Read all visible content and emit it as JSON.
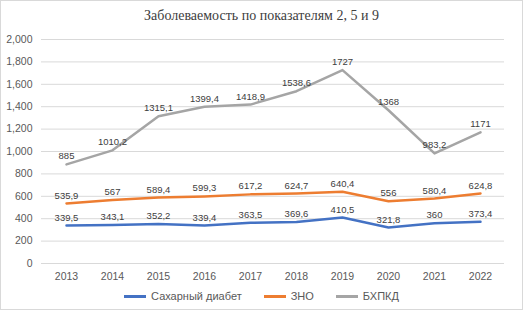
{
  "chart_data": {
    "type": "line",
    "title": "Заболеваемость по показателям 2, 5 и 9",
    "categories": [
      "2013",
      "2014",
      "2015",
      "2016",
      "2017",
      "2018",
      "2019",
      "2020",
      "2021",
      "2022"
    ],
    "series": [
      {
        "name": "Сахарный диабет",
        "color": "#4472c4",
        "values": [
          339.5,
          343.1,
          352.2,
          339.4,
          363.5,
          369.6,
          410.5,
          321.8,
          360,
          373.4
        ],
        "value_labels": [
          "339,5",
          "343,1",
          "352,2",
          "339,4",
          "363,5",
          "369,6",
          "410,5",
          "321,8",
          "360",
          "373,4"
        ]
      },
      {
        "name": "ЗНО",
        "color": "#ed7d31",
        "values": [
          535.9,
          567,
          589.4,
          599.3,
          617.2,
          624.7,
          640.4,
          556,
          580.4,
          624.8
        ],
        "value_labels": [
          "535,9",
          "567",
          "589,4",
          "599,3",
          "617,2",
          "624,7",
          "640,4",
          "556",
          "580,4",
          "624,8"
        ]
      },
      {
        "name": "БХПКД",
        "color": "#a5a5a5",
        "values": [
          885,
          1010.2,
          1315.1,
          1399.4,
          1418.9,
          1538.6,
          1727,
          1368,
          983.2,
          1171
        ],
        "value_labels": [
          "885",
          "1010,2",
          "1315,1",
          "1399,4",
          "1418,9",
          "1538,6",
          "1727",
          "1368",
          "983,2",
          "1171"
        ]
      }
    ],
    "ylim": [
      0,
      2000
    ],
    "yticks": [
      0,
      200,
      400,
      600,
      800,
      1000,
      1200,
      1400,
      1600,
      1800,
      2000
    ],
    "grid": true,
    "legend": "bottom",
    "data_labels": true
  }
}
